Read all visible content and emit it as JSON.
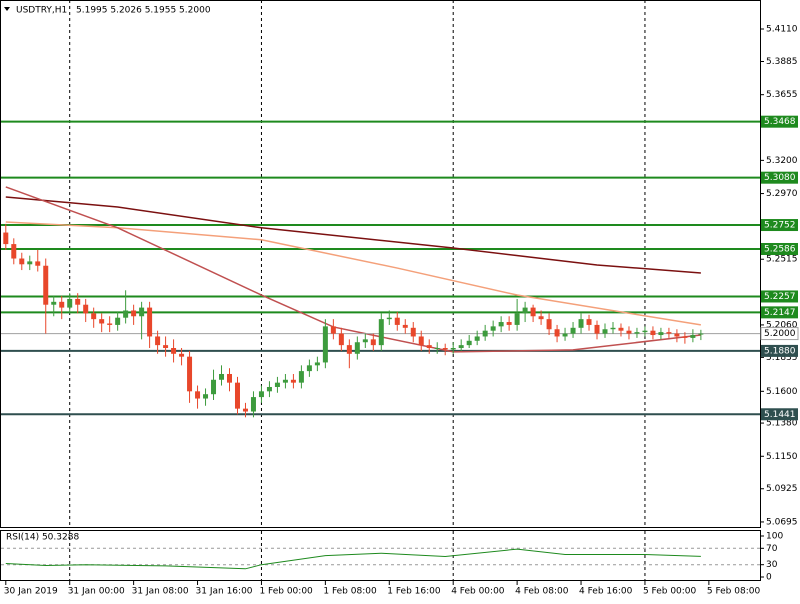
{
  "chart_data": {
    "type": "candlestick",
    "symbol": "USDTRY,H1",
    "header_prices": "5.1995 5.2026 5.1955 5.2000",
    "bull_color": "#3d9b3d",
    "bear_color": "#e8472b",
    "ylim": [
      5.066,
      5.4311
    ],
    "xlim": [
      -0.6,
      94.4
    ],
    "yticks": [
      {
        "value": 5.411,
        "label": "5.4110"
      },
      {
        "value": 5.3885,
        "label": "5.3885"
      },
      {
        "value": 5.3655,
        "label": "5.3655"
      },
      {
        "value": 5.32,
        "label": "5.3200"
      },
      {
        "value": 5.297,
        "label": "5.2970"
      },
      {
        "value": 5.2515,
        "label": "5.2515"
      },
      {
        "value": 5.206,
        "label": "5.2060"
      },
      {
        "value": 5.1835,
        "label": "5.1835"
      },
      {
        "value": 5.16,
        "label": "5.1600"
      },
      {
        "value": 5.138,
        "label": "5.1380"
      },
      {
        "value": 5.115,
        "label": "5.1150"
      },
      {
        "value": 5.0925,
        "label": "5.0925"
      },
      {
        "value": 5.0695,
        "label": "5.0695"
      }
    ],
    "xticks": [
      {
        "value": 0,
        "label": "30 Jan 2019"
      },
      {
        "value": 8,
        "label": "31 Jan 00:00"
      },
      {
        "value": 16,
        "label": "31 Jan 08:00"
      },
      {
        "value": 24,
        "label": "31 Jan 16:00"
      },
      {
        "value": 32,
        "label": "1 Feb 00:00"
      },
      {
        "value": 40,
        "label": "1 Feb 08:00"
      },
      {
        "value": 48,
        "label": "1 Feb 16:00"
      },
      {
        "value": 56,
        "label": "4 Feb 00:00"
      },
      {
        "value": 64,
        "label": "4 Feb 08:00"
      },
      {
        "value": 72,
        "label": "4 Feb 16:00"
      },
      {
        "value": 80,
        "label": "5 Feb 00:00"
      },
      {
        "value": 88,
        "label": "5 Feb 08:00"
      }
    ],
    "day_separators": true,
    "levels": [
      {
        "value": 5.3468,
        "label": "5.3468",
        "color": "#1e8a1e"
      },
      {
        "value": 5.308,
        "label": "5.3080",
        "color": "#1e8a1e"
      },
      {
        "value": 5.2752,
        "label": "5.2752",
        "color": "#1e8a1e"
      },
      {
        "value": 5.2586,
        "label": "5.2586",
        "color": "#1e8a1e"
      },
      {
        "value": 5.2257,
        "label": "5.2257",
        "color": "#1e8a1e"
      },
      {
        "value": 5.2147,
        "label": "5.2147",
        "color": "#1e8a1e"
      },
      {
        "value": 5.188,
        "label": "5.1880",
        "color": "#2f4f4f"
      },
      {
        "value": 5.1441,
        "label": "5.1441",
        "color": "#2f4f4f"
      }
    ],
    "price_line": {
      "value": 5.2,
      "label": "5.2000"
    },
    "ohlc": [
      [
        5.27,
        5.276,
        5.258,
        5.262
      ],
      [
        5.262,
        5.266,
        5.248,
        5.252
      ],
      [
        5.252,
        5.256,
        5.244,
        5.248
      ],
      [
        5.248,
        5.254,
        5.244,
        5.25
      ],
      [
        5.25,
        5.258,
        5.243,
        5.247
      ],
      [
        5.247,
        5.252,
        5.2,
        5.22
      ],
      [
        5.22,
        5.226,
        5.212,
        5.222
      ],
      [
        5.222,
        5.226,
        5.21,
        5.218
      ],
      [
        5.218,
        5.228,
        5.214,
        5.224
      ],
      [
        5.224,
        5.228,
        5.214,
        5.22
      ],
      [
        5.22,
        5.224,
        5.208,
        5.214
      ],
      [
        5.214,
        5.218,
        5.204,
        5.21
      ],
      [
        5.21,
        5.214,
        5.201,
        5.207
      ],
      [
        5.207,
        5.212,
        5.201,
        5.206
      ],
      [
        5.206,
        5.215,
        5.202,
        5.211
      ],
      [
        5.211,
        5.23,
        5.207,
        5.216
      ],
      [
        5.216,
        5.22,
        5.206,
        5.212
      ],
      [
        5.212,
        5.222,
        5.196,
        5.218
      ],
      [
        5.218,
        5.222,
        5.19,
        5.198
      ],
      [
        5.198,
        5.202,
        5.186,
        5.192
      ],
      [
        5.192,
        5.198,
        5.184,
        5.19
      ],
      [
        5.19,
        5.196,
        5.18,
        5.186
      ],
      [
        5.186,
        5.19,
        5.178,
        5.184
      ],
      [
        5.184,
        5.188,
        5.152,
        5.16
      ],
      [
        5.16,
        5.164,
        5.148,
        5.155
      ],
      [
        5.155,
        5.162,
        5.15,
        5.158
      ],
      [
        5.158,
        5.175,
        5.154,
        5.168
      ],
      [
        5.168,
        5.178,
        5.164,
        5.172
      ],
      [
        5.172,
        5.176,
        5.16,
        5.166
      ],
      [
        5.166,
        5.17,
        5.144,
        5.148
      ],
      [
        5.148,
        5.152,
        5.142,
        5.146
      ],
      [
        5.146,
        5.16,
        5.142,
        5.156
      ],
      [
        5.156,
        5.164,
        5.152,
        5.16
      ],
      [
        5.16,
        5.167,
        5.156,
        5.163
      ],
      [
        5.163,
        5.17,
        5.159,
        5.166
      ],
      [
        5.166,
        5.172,
        5.162,
        5.168
      ],
      [
        5.168,
        5.172,
        5.162,
        5.166
      ],
      [
        5.166,
        5.178,
        5.162,
        5.174
      ],
      [
        5.174,
        5.182,
        5.17,
        5.178
      ],
      [
        5.178,
        5.184,
        5.174,
        5.18
      ],
      [
        5.18,
        5.21,
        5.176,
        5.205
      ],
      [
        5.205,
        5.21,
        5.196,
        5.2
      ],
      [
        5.2,
        5.204,
        5.188,
        5.192
      ],
      [
        5.192,
        5.196,
        5.176,
        5.186
      ],
      [
        5.186,
        5.198,
        5.182,
        5.194
      ],
      [
        5.194,
        5.2,
        5.19,
        5.196
      ],
      [
        5.196,
        5.2,
        5.188,
        5.192
      ],
      [
        5.192,
        5.214,
        5.188,
        5.21
      ],
      [
        5.21,
        5.216,
        5.206,
        5.211
      ],
      [
        5.211,
        5.215,
        5.202,
        5.206
      ],
      [
        5.206,
        5.21,
        5.2,
        5.204
      ],
      [
        5.204,
        5.208,
        5.194,
        5.198
      ],
      [
        5.198,
        5.202,
        5.188,
        5.192
      ],
      [
        5.192,
        5.196,
        5.186,
        5.19
      ],
      [
        5.19,
        5.194,
        5.186,
        5.19
      ],
      [
        5.19,
        5.193,
        5.185,
        5.189
      ],
      [
        5.189,
        5.194,
        5.186,
        5.19
      ],
      [
        5.19,
        5.196,
        5.188,
        5.192
      ],
      [
        5.192,
        5.199,
        5.19,
        5.195
      ],
      [
        5.195,
        5.202,
        5.192,
        5.198
      ],
      [
        5.198,
        5.206,
        5.195,
        5.202
      ],
      [
        5.202,
        5.209,
        5.198,
        5.205
      ],
      [
        5.205,
        5.212,
        5.201,
        5.208
      ],
      [
        5.208,
        5.212,
        5.202,
        5.206
      ],
      [
        5.206,
        5.224,
        5.202,
        5.214
      ],
      [
        5.214,
        5.222,
        5.208,
        5.218
      ],
      [
        5.218,
        5.22,
        5.208,
        5.212
      ],
      [
        5.212,
        5.216,
        5.206,
        5.21
      ],
      [
        5.21,
        5.214,
        5.199,
        5.203
      ],
      [
        5.203,
        5.206,
        5.194,
        5.198
      ],
      [
        5.198,
        5.204,
        5.195,
        5.2
      ],
      [
        5.2,
        5.208,
        5.197,
        5.204
      ],
      [
        5.204,
        5.214,
        5.2,
        5.21
      ],
      [
        5.21,
        5.213,
        5.202,
        5.206
      ],
      [
        5.206,
        5.209,
        5.196,
        5.2
      ],
      [
        5.2,
        5.207,
        5.197,
        5.203
      ],
      [
        5.203,
        5.208,
        5.2,
        5.204
      ],
      [
        5.204,
        5.207,
        5.198,
        5.202
      ],
      [
        5.202,
        5.205,
        5.196,
        5.2
      ],
      [
        5.2,
        5.204,
        5.197,
        5.201
      ],
      [
        5.201,
        5.205,
        5.198,
        5.202
      ],
      [
        5.202,
        5.205,
        5.196,
        5.199
      ],
      [
        5.199,
        5.204,
        5.196,
        5.201
      ],
      [
        5.201,
        5.204,
        5.197,
        5.2
      ],
      [
        5.2,
        5.203,
        5.194,
        5.198
      ],
      [
        5.198,
        5.201,
        5.193,
        5.197
      ],
      [
        5.197,
        5.203,
        5.194,
        5.199
      ],
      [
        5.1995,
        5.2026,
        5.1955,
        5.2
      ]
    ],
    "moving_averages": [
      {
        "color": "#7b1010",
        "x": [
          0,
          14,
          32,
          56,
          74,
          87
        ],
        "values": [
          5.2946,
          5.2877,
          5.2733,
          5.2593,
          5.2475,
          5.242
        ]
      },
      {
        "color": "#f4a07a",
        "x": [
          0,
          14,
          32,
          49,
          64,
          87
        ],
        "values": [
          5.2773,
          5.2733,
          5.265,
          5.2454,
          5.2267,
          5.206
        ]
      },
      {
        "color": "#c05050",
        "x": [
          0,
          14,
          32,
          41,
          56,
          71,
          87
        ],
        "values": [
          5.3016,
          5.2733,
          5.2267,
          5.2046,
          5.1873,
          5.1887,
          5.199
        ]
      }
    ],
    "rsi": {
      "label": "RSI(14) 50.3288",
      "color": "#1e8a1e",
      "ylim": [
        0,
        100
      ],
      "yticks": [
        100,
        70,
        30,
        0
      ],
      "levels": [
        70,
        30
      ],
      "x": [
        0,
        5,
        10,
        20,
        30,
        32,
        40,
        47,
        55,
        64,
        70,
        80,
        87
      ],
      "values": [
        33,
        28,
        30,
        27,
        20,
        30,
        52,
        58,
        50,
        68,
        55,
        55,
        50.3288
      ]
    }
  }
}
